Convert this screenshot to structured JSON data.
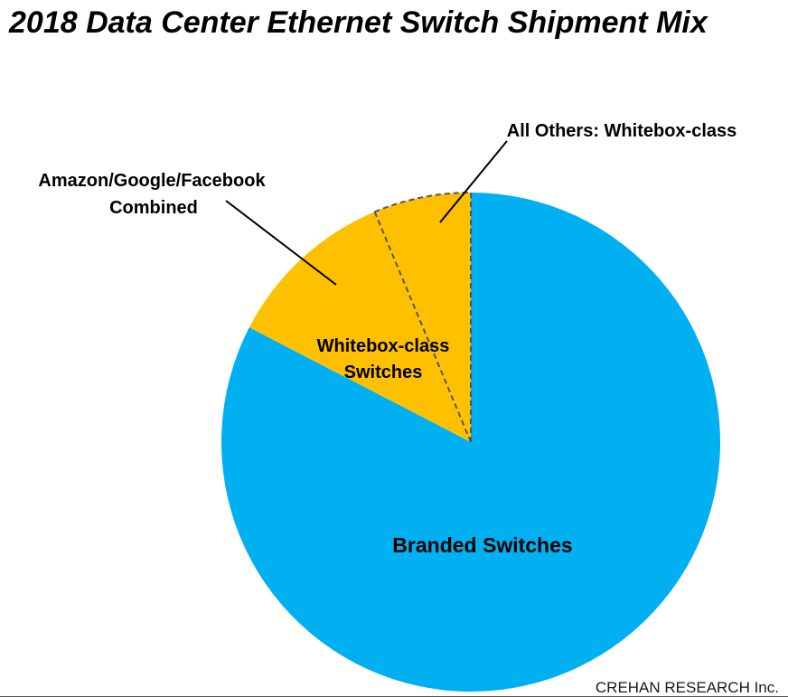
{
  "chart_data": {
    "type": "pie",
    "title": "2018 Data Center Ethernet Switch Shipment Mix",
    "slices": [
      {
        "name": "Branded Switches",
        "value": 82.6,
        "color": "#00b0f0"
      },
      {
        "name": "Amazon/Google/Facebook Combined",
        "value": 11.1,
        "color": "#ffc000"
      },
      {
        "name": "All Others: Whitebox-class",
        "value": 6.3,
        "color": "#ffc000"
      }
    ],
    "group_labels": [
      {
        "text": "Whitebox-class Switches",
        "lines": [
          "Whitebox-class",
          "Switches"
        ]
      }
    ],
    "callouts": [
      {
        "lines": [
          "Amazon/Google/Facebook",
          "Combined"
        ]
      },
      {
        "lines": [
          "All Others: Whitebox-class"
        ]
      }
    ],
    "source": "CREHAN RESEARCH Inc."
  }
}
